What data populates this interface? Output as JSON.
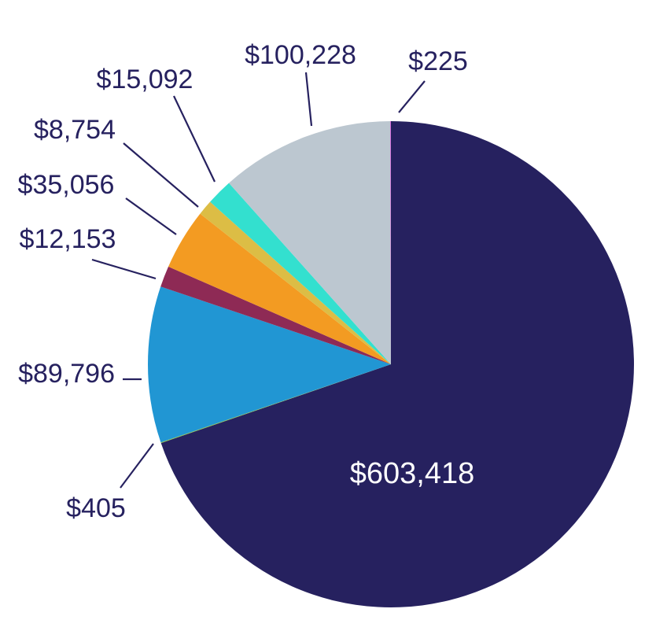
{
  "chart_data": {
    "type": "pie",
    "title": "",
    "start_angle_deg": 90,
    "direction": "clockwise",
    "slices": [
      {
        "value": 603418,
        "label": "$603,418",
        "color": "#26215f",
        "label_position": "inside"
      },
      {
        "value": 405,
        "label": "$405",
        "color": "#8dc63f",
        "label_position": "outside"
      },
      {
        "value": 89796,
        "label": "$89,796",
        "color": "#2196d3",
        "label_position": "outside"
      },
      {
        "value": 12153,
        "label": "$12,153",
        "color": "#8e2a55",
        "label_position": "outside"
      },
      {
        "value": 35056,
        "label": "$35,056",
        "color": "#f39b22",
        "label_position": "outside"
      },
      {
        "value": 8754,
        "label": "$8,754",
        "color": "#dcbd45",
        "label_position": "outside"
      },
      {
        "value": 15092,
        "label": "$15,092",
        "color": "#33e0cf",
        "label_position": "outside"
      },
      {
        "value": 100228,
        "label": "$100,228",
        "color": "#bcc7d0",
        "label_position": "outside"
      },
      {
        "value": 225,
        "label": "$225",
        "color": "#f011e6",
        "label_position": "outside"
      }
    ]
  }
}
